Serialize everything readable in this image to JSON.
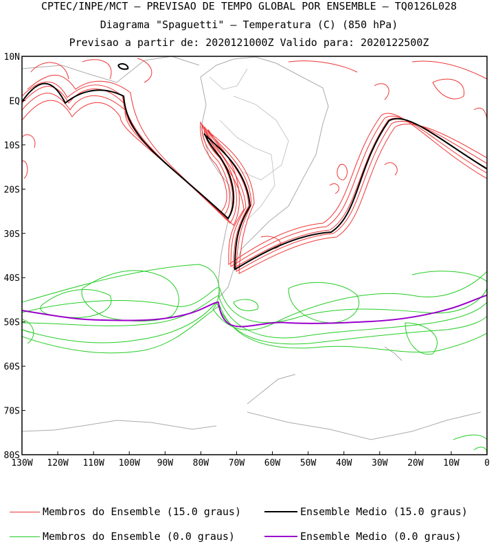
{
  "titles": {
    "line1": "CPTEC/INPE/MCT – PREVISAO DE TEMPO GLOBAL POR ENSEMBLE – TQ0126L028",
    "line2": "Diagrama \"Spaguetti\" – Temperatura (C) (850 hPa)",
    "line3": "Previsao a partir de: 2020121000Z  Valido para: 2020122500Z"
  },
  "map": {
    "lon_range": [
      -130,
      0
    ],
    "lat_range": [
      -80,
      10
    ],
    "lat_ticks": [
      "10N",
      "EQ",
      "10S",
      "20S",
      "30S",
      "40S",
      "50S",
      "60S",
      "70S",
      "80S"
    ],
    "lon_ticks": [
      "130W",
      "120W",
      "110W",
      "100W",
      "90W",
      "80W",
      "70W",
      "60W",
      "50W",
      "40W",
      "30W",
      "20W",
      "10W",
      "0"
    ],
    "colors": {
      "red_members": "#ee3333",
      "green_members": "#22cc22",
      "mean_15": "#000000",
      "mean_0": "#9900cc",
      "coast": "#aaaaaa"
    }
  },
  "legend": {
    "red_members": "Membros do Ensemble (15.0 graus)",
    "mean_15": "Ensemble Medio (15.0 graus)",
    "green_members": "Membros do Ensemble (0.0 graus)",
    "mean_0": "Ensemble Medio (0.0 graus)"
  }
}
